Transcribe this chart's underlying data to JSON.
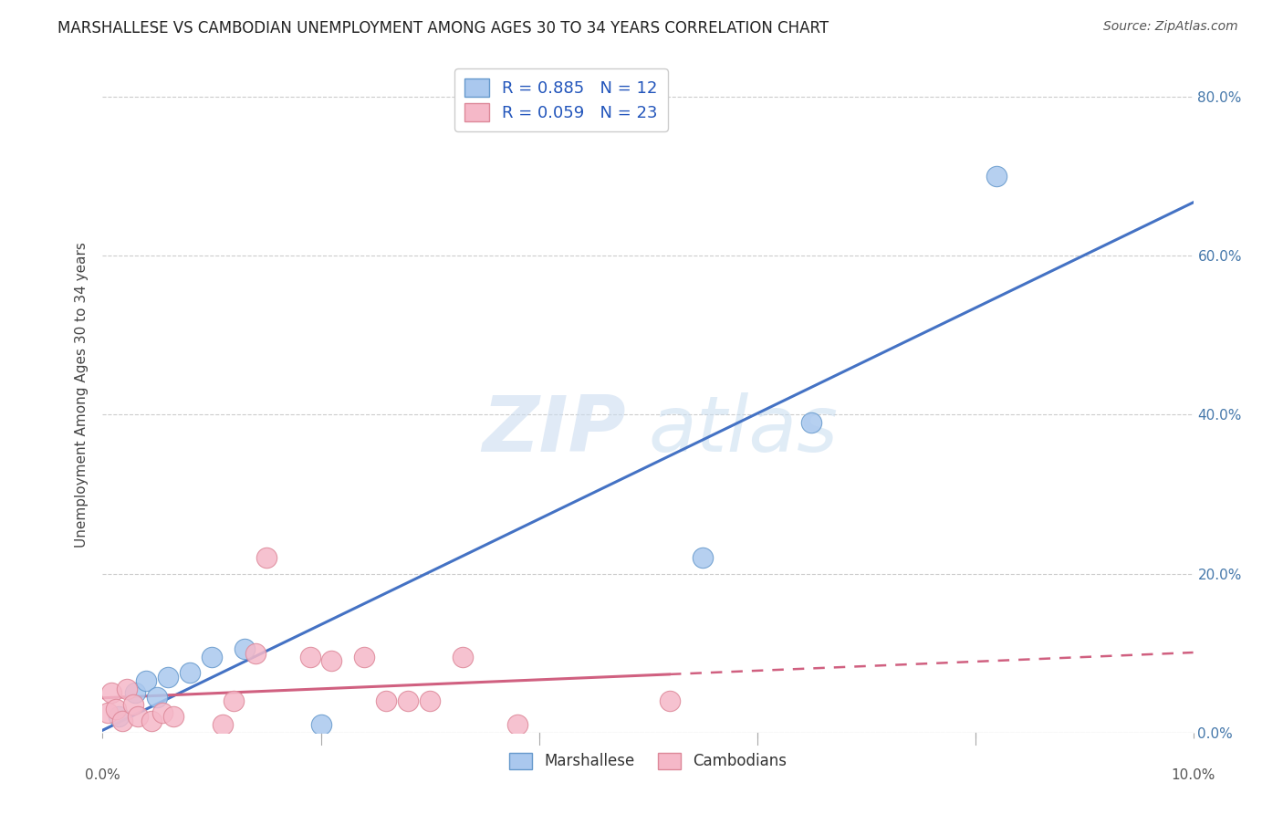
{
  "title": "MARSHALLESE VS CAMBODIAN UNEMPLOYMENT AMONG AGES 30 TO 34 YEARS CORRELATION CHART",
  "source": "Source: ZipAtlas.com",
  "ylabel": "Unemployment Among Ages 30 to 34 years",
  "legend_r_marshallese": "R = 0.885",
  "legend_n_marshallese": "N = 12",
  "legend_r_cambodian": "R = 0.059",
  "legend_n_cambodian": "N = 23",
  "legend_label_marshallese": "Marshallese",
  "legend_label_cambodian": "Cambodians",
  "marshallese_points": [
    [
      0.15,
      2.0
    ],
    [
      0.3,
      5.0
    ],
    [
      0.4,
      6.5
    ],
    [
      0.5,
      4.5
    ],
    [
      0.6,
      7.0
    ],
    [
      0.8,
      7.5
    ],
    [
      1.0,
      9.5
    ],
    [
      1.3,
      10.5
    ],
    [
      2.0,
      1.0
    ],
    [
      5.5,
      22.0
    ],
    [
      6.5,
      39.0
    ],
    [
      8.2,
      70.0
    ]
  ],
  "cambodian_points": [
    [
      0.05,
      2.5
    ],
    [
      0.08,
      5.0
    ],
    [
      0.12,
      3.0
    ],
    [
      0.18,
      1.5
    ],
    [
      0.22,
      5.5
    ],
    [
      0.28,
      3.5
    ],
    [
      0.32,
      2.0
    ],
    [
      0.45,
      1.5
    ],
    [
      0.55,
      2.5
    ],
    [
      0.65,
      2.0
    ],
    [
      1.5,
      22.0
    ],
    [
      1.1,
      1.0
    ],
    [
      1.2,
      4.0
    ],
    [
      1.4,
      10.0
    ],
    [
      1.9,
      9.5
    ],
    [
      2.1,
      9.0
    ],
    [
      2.4,
      9.5
    ],
    [
      2.6,
      4.0
    ],
    [
      2.8,
      4.0
    ],
    [
      3.0,
      4.0
    ],
    [
      3.3,
      9.5
    ],
    [
      3.8,
      1.0
    ],
    [
      5.2,
      4.0
    ]
  ],
  "marshallese_color": "#aac8ee",
  "marshallese_edge_color": "#6699cc",
  "marshallese_line_color": "#4472c4",
  "cambodian_color": "#f5b8c8",
  "cambodian_edge_color": "#dd8899",
  "cambodian_line_color": "#d06080",
  "ytick_labels_right": [
    "0.0%",
    "20.0%",
    "40.0%",
    "60.0%",
    "80.0%"
  ],
  "ytick_values": [
    0,
    20,
    40,
    60,
    80
  ],
  "xmin": 0.0,
  "xmax": 10.0,
  "ymin": 0,
  "ymax": 85,
  "background_color": "#ffffff",
  "grid_color": "#cccccc",
  "title_fontsize": 12,
  "source_fontsize": 10,
  "tick_fontsize": 11,
  "ylabel_fontsize": 11
}
